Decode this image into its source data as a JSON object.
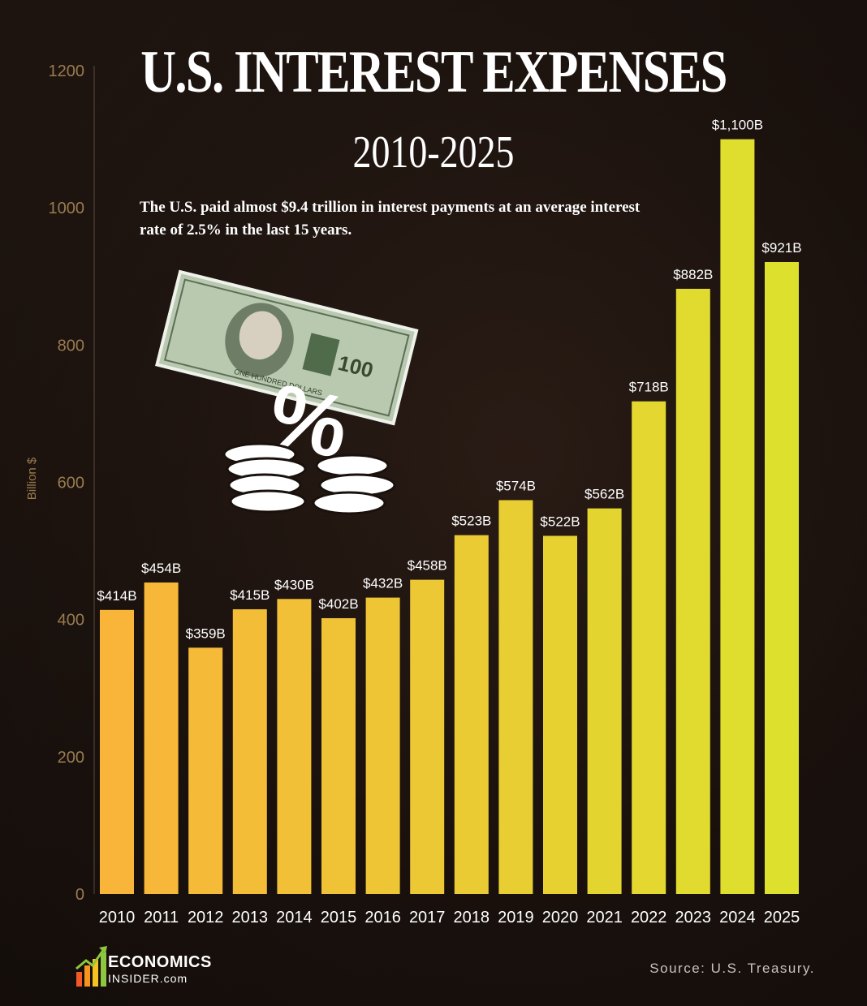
{
  "header": {
    "title": "U.S. INTEREST EXPENSES",
    "subtitle": "2010-2025",
    "note": "The U.S. paid almost $9.4 trillion in interest payments at an average interest rate of 2.5% in the last 15 years."
  },
  "footer": {
    "source": "Source: U.S. Treasury.",
    "logo_top": "ECONOMICS",
    "logo_bottom": "INSIDER.com"
  },
  "illustration": {
    "bill_text": "ONE HUNDRED DOLLARS",
    "bill_value": "100",
    "percent_symbol": "%"
  },
  "colors": {
    "bar_start": "#f9b43a",
    "bar_end": "#dde02d",
    "axis_text": "#9a7b4f",
    "label_text": "#ffffff"
  },
  "chart_data": {
    "type": "bar",
    "categories": [
      "2010",
      "2011",
      "2012",
      "2013",
      "2014",
      "2015",
      "2016",
      "2017",
      "2018",
      "2019",
      "2020",
      "2021",
      "2022",
      "2023",
      "2024",
      "2025"
    ],
    "values": [
      414,
      454,
      359,
      415,
      430,
      402,
      432,
      458,
      523,
      574,
      522,
      562,
      718,
      882,
      1100,
      921
    ],
    "data_labels": [
      "$414B",
      "$454B",
      "$359B",
      "$415B",
      "$430B",
      "$402B",
      "$432B",
      "$458B",
      "$523B",
      "$574B",
      "$522B",
      "$562B",
      "$718B",
      "$882B",
      "$1,100B",
      "$921B"
    ],
    "ylabel": "Billion $",
    "yticks": [
      0,
      200,
      400,
      600,
      800,
      1000,
      1200
    ],
    "ylim": [
      0,
      1200
    ],
    "grid": false
  }
}
